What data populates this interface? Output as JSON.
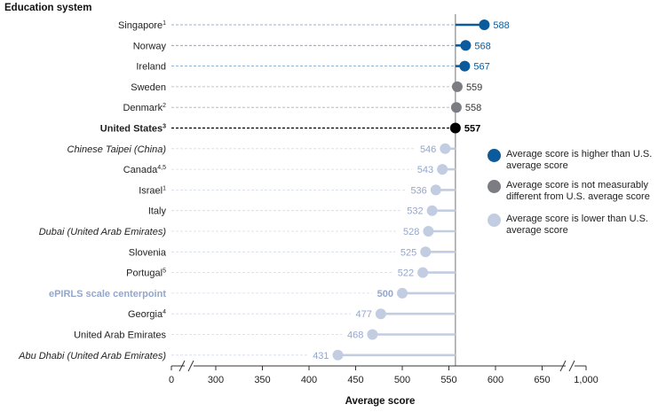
{
  "colors": {
    "higher": "#0a5a9c",
    "not_different": "#7b7d82",
    "lower": "#c3cde2",
    "us": "#000000",
    "lower_label": "#93a6cc"
  },
  "chart_data": {
    "type": "dot",
    "title": "Education system",
    "xlabel": "Average score",
    "reference": {
      "label": "U.S. average",
      "value": 557
    },
    "x_ticks": [
      "0",
      "300",
      "350",
      "400",
      "450",
      "500",
      "550",
      "600",
      "650",
      "1,000"
    ],
    "x_tick_values": [
      0,
      300,
      350,
      400,
      450,
      500,
      550,
      600,
      650,
      1000
    ],
    "axis_break": "broken between 0 and 300 and between 650 and 1,000",
    "rows": [
      {
        "name": "Singapore",
        "sup": "1",
        "value": 588,
        "label": "588",
        "group": "higher",
        "italic": false,
        "bold": false
      },
      {
        "name": "Norway",
        "sup": "",
        "value": 568,
        "label": "568",
        "group": "higher",
        "italic": false,
        "bold": false
      },
      {
        "name": "Ireland",
        "sup": "",
        "value": 567,
        "label": "567",
        "group": "higher",
        "italic": false,
        "bold": false
      },
      {
        "name": "Sweden",
        "sup": "",
        "value": 559,
        "label": "559",
        "group": "not_different",
        "italic": false,
        "bold": false
      },
      {
        "name": "Denmark",
        "sup": "2",
        "value": 558,
        "label": "558",
        "group": "not_different",
        "italic": false,
        "bold": false
      },
      {
        "name": "United States",
        "sup": "3",
        "value": 557,
        "label": "557",
        "group": "us",
        "italic": false,
        "bold": true
      },
      {
        "name": "Chinese Taipei (China)",
        "sup": "",
        "value": 546,
        "label": "546",
        "group": "lower",
        "italic": true,
        "bold": false
      },
      {
        "name": "Canada",
        "sup": "4,5",
        "value": 543,
        "label": "543",
        "group": "lower",
        "italic": false,
        "bold": false
      },
      {
        "name": "Israel",
        "sup": "1",
        "value": 536,
        "label": "536",
        "group": "lower",
        "italic": false,
        "bold": false
      },
      {
        "name": "Italy",
        "sup": "",
        "value": 532,
        "label": "532",
        "group": "lower",
        "italic": false,
        "bold": false
      },
      {
        "name": "Dubai (United Arab Emirates)",
        "sup": "",
        "value": 528,
        "label": "528",
        "group": "lower",
        "italic": true,
        "bold": false
      },
      {
        "name": "Slovenia",
        "sup": "",
        "value": 525,
        "label": "525",
        "group": "lower",
        "italic": false,
        "bold": false
      },
      {
        "name": "Portugal",
        "sup": "5",
        "value": 522,
        "label": "522",
        "group": "lower",
        "italic": false,
        "bold": false
      },
      {
        "name": "ePIRLS scale centerpoint",
        "sup": "",
        "value": 500,
        "label": "500",
        "group": "centerpoint",
        "italic": false,
        "bold": true
      },
      {
        "name": "Georgia",
        "sup": "4",
        "value": 477,
        "label": "477",
        "group": "lower",
        "italic": false,
        "bold": false
      },
      {
        "name": "United Arab Emirates",
        "sup": "",
        "value": 468,
        "label": "468",
        "group": "lower",
        "italic": false,
        "bold": false
      },
      {
        "name": "Abu Dhabi (United Arab Emirates)",
        "sup": "",
        "value": 431,
        "label": "431",
        "group": "lower",
        "italic": true,
        "bold": false
      }
    ],
    "legend": [
      {
        "group": "higher",
        "text": "Average score is higher than U.S. average score"
      },
      {
        "group": "not_different",
        "text": "Average score is not measurably different from U.S. average score"
      },
      {
        "group": "lower",
        "text": "Average score is lower than U.S. average score"
      }
    ]
  }
}
